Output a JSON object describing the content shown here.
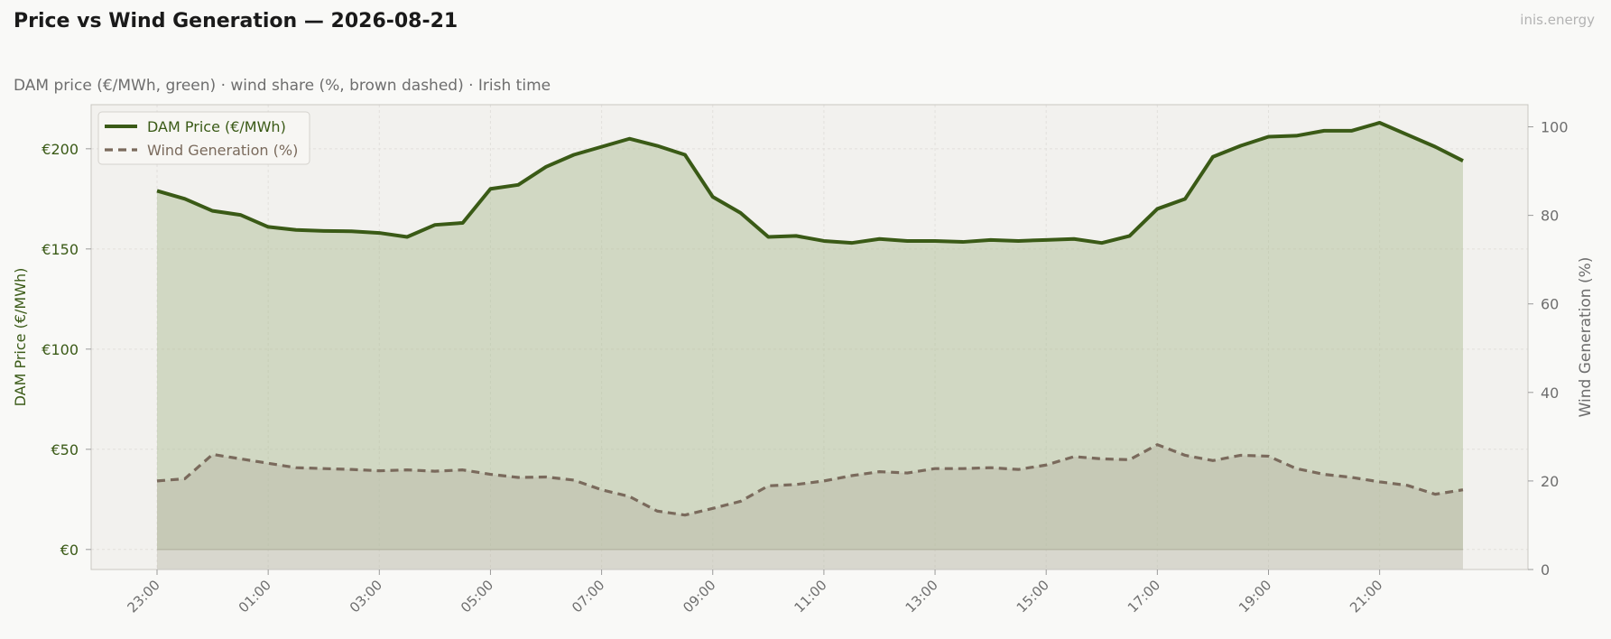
{
  "header": {
    "title": "Price vs Wind Generation — 2026-08-21",
    "brand": "inis.energy",
    "subtitle": "DAM price (€/MWh, green)  ·  wind share (%, brown dashed)  ·  Irish time"
  },
  "colors": {
    "price": "#3a5a16",
    "price_fill": "#a8bb8e",
    "wind": "#7a6a5c",
    "wind_fill": "#b9b8a6",
    "plot_bg": "#f2f1ee",
    "grid": "#e2e0dc",
    "axis_text": "#6e6e6e"
  },
  "chart_data": {
    "type": "line",
    "times": [
      "23:00",
      "23:30",
      "00:00",
      "00:30",
      "01:00",
      "01:30",
      "02:00",
      "02:30",
      "03:00",
      "03:30",
      "04:00",
      "04:30",
      "05:00",
      "05:30",
      "06:00",
      "06:30",
      "07:00",
      "07:30",
      "08:00",
      "08:30",
      "09:00",
      "09:30",
      "10:00",
      "10:30",
      "11:00",
      "11:30",
      "12:00",
      "12:30",
      "13:00",
      "13:30",
      "14:00",
      "14:30",
      "15:00",
      "15:30",
      "16:00",
      "16:30",
      "17:00",
      "17:30",
      "18:00",
      "18:30",
      "19:00",
      "19:30",
      "20:00",
      "20:30",
      "21:00",
      "21:30",
      "22:00",
      "22:30"
    ],
    "x_tick_labels": [
      "23:00",
      "01:00",
      "03:00",
      "05:00",
      "07:00",
      "09:00",
      "11:00",
      "13:00",
      "15:00",
      "17:00",
      "19:00",
      "21:00"
    ],
    "series": [
      {
        "name": "DAM Price (€/MWh)",
        "axis": "left",
        "style": "solid",
        "values": [
          179,
          175,
          169,
          167,
          161,
          159.5,
          159,
          158.8,
          158,
          156,
          162,
          163,
          180,
          182,
          191,
          197,
          201,
          205,
          201.5,
          197,
          176,
          168,
          156,
          156.5,
          154,
          153,
          155,
          154,
          154,
          153.5,
          154.5,
          154,
          154.5,
          155,
          153,
          156.5,
          170,
          175,
          196,
          201.5,
          206,
          206.5,
          209,
          209,
          213,
          207,
          201,
          194
        ]
      },
      {
        "name": "Wind Generation (%)",
        "axis": "right",
        "style": "dashed",
        "values": [
          20,
          20.5,
          26,
          25,
          24,
          23,
          22.8,
          22.6,
          22.3,
          22.5,
          22.2,
          22.5,
          21.5,
          20.8,
          20.9,
          20.2,
          18,
          16.5,
          13.2,
          12.3,
          13.8,
          15.4,
          18.9,
          19.2,
          20,
          21.2,
          22.1,
          21.8,
          22.8,
          22.8,
          23,
          22.6,
          23.6,
          25.5,
          25,
          24.8,
          28.2,
          25.8,
          24.6,
          25.8,
          25.6,
          22.8,
          21.5,
          20.8,
          19.8,
          19,
          17,
          18
        ]
      }
    ],
    "y_left": {
      "label": "DAM Price (€/MWh)",
      "range": [
        -10,
        222
      ],
      "ticks": [
        0,
        50,
        100,
        150,
        200
      ],
      "tick_labels": [
        "€0",
        "€50",
        "€100",
        "€150",
        "€200"
      ]
    },
    "y_right": {
      "label": "Wind Generation (%)",
      "range": [
        0,
        105
      ],
      "ticks": [
        0,
        20,
        40,
        60,
        80,
        100
      ],
      "tick_labels": [
        "0",
        "20",
        "40",
        "60",
        "80",
        "100"
      ]
    },
    "legend": {
      "position": "top-left",
      "entries": [
        "DAM Price (€/MWh)",
        "Wind Generation (%)"
      ]
    },
    "grid": true
  }
}
